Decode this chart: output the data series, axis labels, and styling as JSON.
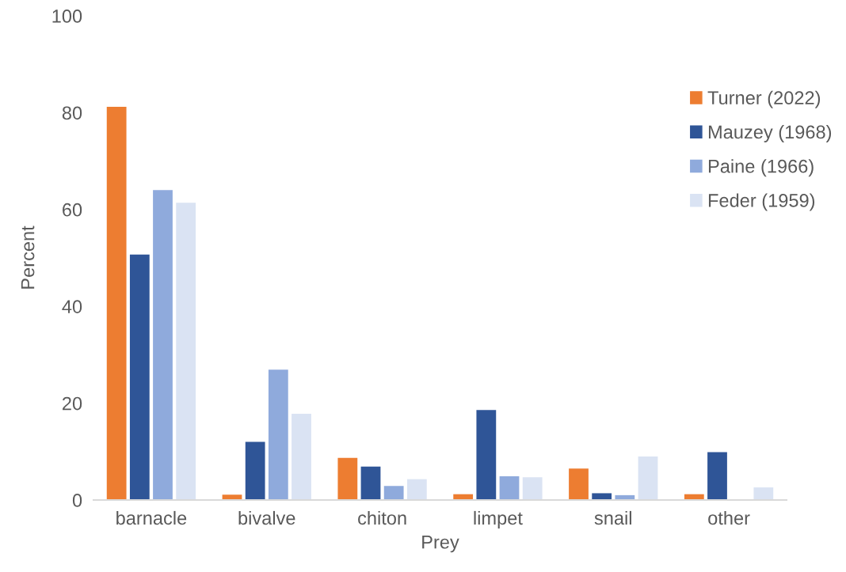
{
  "chart_data": {
    "type": "bar",
    "xlabel": "Prey",
    "ylabel": "Percent",
    "categories": [
      "barnacle",
      "bivalve",
      "chiton",
      "limpet",
      "snail",
      "other"
    ],
    "series": [
      {
        "name": "Turner (2022)",
        "color": "#ed7d31",
        "values": [
          81.2,
          1.1,
          8.7,
          1.2,
          6.5,
          1.2
        ]
      },
      {
        "name": "Mauzey (1968)",
        "color": "#2f5597",
        "values": [
          50.7,
          12.0,
          6.9,
          18.6,
          1.4,
          9.9
        ]
      },
      {
        "name": "Paine (1966)",
        "color": "#8faadc",
        "values": [
          64.0,
          26.9,
          2.9,
          4.9,
          1.0,
          null
        ]
      },
      {
        "name": "Feder (1959)",
        "color": "#dae3f3",
        "values": [
          61.4,
          17.8,
          4.3,
          4.7,
          9.0,
          2.6
        ]
      }
    ],
    "ylim": [
      0,
      100
    ],
    "yticks": [
      0,
      20,
      40,
      60,
      80,
      100
    ],
    "grid": false,
    "legend": "top right"
  }
}
